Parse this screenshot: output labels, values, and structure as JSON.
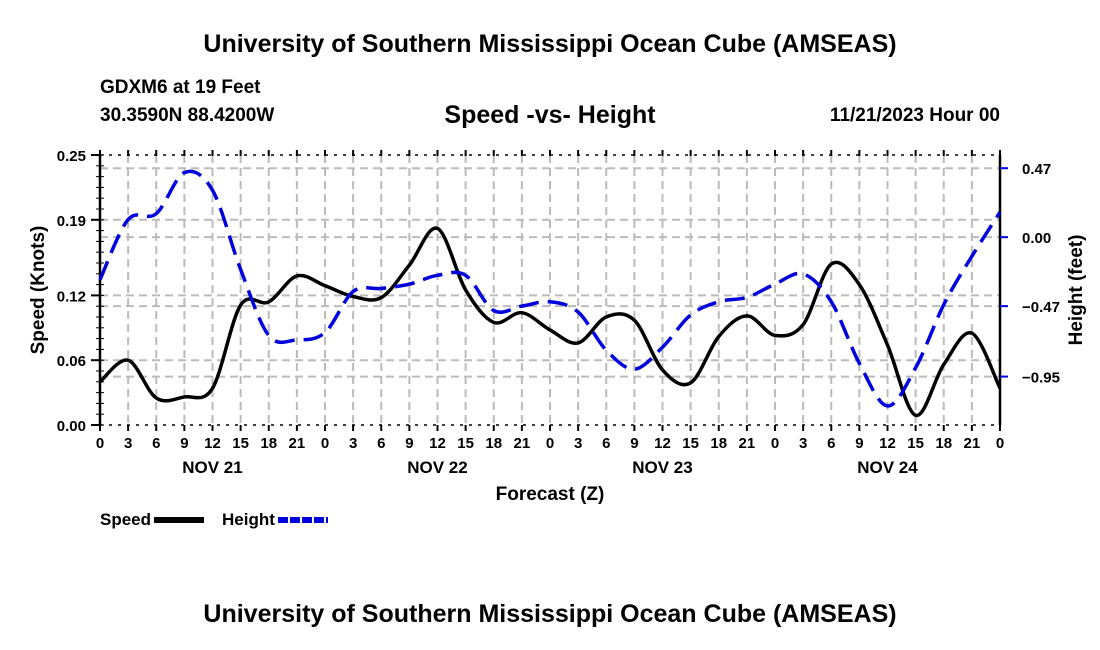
{
  "header": {
    "main_title": "University of Southern Mississippi Ocean Cube (AMSEAS)",
    "station": "GDXM6 at 19 Feet",
    "coordinates": "30.3590N  88.4200W",
    "subtitle": "Speed -vs- Height",
    "datetime": "11/21/2023 Hour 00",
    "footer_title": "University of Southern Mississippi Ocean Cube (AMSEAS)"
  },
  "legend": {
    "speed_label": "Speed",
    "height_label": "Height"
  },
  "chart_data": {
    "type": "line",
    "title": "Speed -vs- Height",
    "xlabel": "Forecast (Z)",
    "ylabel": "Speed (Knots)",
    "y2label": "Height (feet)",
    "xlim": [
      0,
      96
    ],
    "ylim": [
      0,
      0.25
    ],
    "y2lim": [
      -1.28,
      0.56
    ],
    "grid": true,
    "legend_position": "bottom-left",
    "x_tick_labels": [
      "0",
      "3",
      "6",
      "9",
      "12",
      "15",
      "18",
      "21",
      "0",
      "3",
      "6",
      "9",
      "12",
      "15",
      "18",
      "21",
      "0",
      "3",
      "6",
      "9",
      "12",
      "15",
      "18",
      "21",
      "0",
      "3",
      "6",
      "9",
      "12",
      "15",
      "18",
      "21",
      "0"
    ],
    "day_labels": [
      {
        "label": "NOV 21",
        "center_hour": 12
      },
      {
        "label": "NOV 22",
        "center_hour": 36
      },
      {
        "label": "NOV 23",
        "center_hour": 60
      },
      {
        "label": "NOV 24",
        "center_hour": 84
      }
    ],
    "y_ticks": [
      0.0,
      0.06,
      0.12,
      0.19,
      0.25
    ],
    "y_tick_labels": [
      "0.00",
      "0.06",
      "0.12",
      "0.19",
      "0.25"
    ],
    "y2_ticks": [
      -0.95,
      -0.47,
      0.0,
      0.47
    ],
    "y2_tick_labels": [
      "−0.95",
      "−0.47",
      "0.00",
      "0.47"
    ],
    "x": [
      0,
      3,
      6,
      9,
      12,
      15,
      18,
      21,
      24,
      27,
      30,
      33,
      36,
      39,
      42,
      45,
      48,
      51,
      54,
      57,
      60,
      63,
      66,
      69,
      72,
      75,
      78,
      81,
      84,
      87,
      90,
      93,
      96
    ],
    "series": [
      {
        "name": "Speed",
        "axis": "left",
        "color": "#000000",
        "style": "solid",
        "values": [
          0.04,
          0.06,
          0.025,
          0.026,
          0.034,
          0.111,
          0.114,
          0.138,
          0.129,
          0.119,
          0.118,
          0.148,
          0.182,
          0.125,
          0.095,
          0.104,
          0.088,
          0.076,
          0.1,
          0.097,
          0.051,
          0.039,
          0.082,
          0.101,
          0.083,
          0.093,
          0.149,
          0.13,
          0.074,
          0.009,
          0.056,
          0.085,
          0.034
        ]
      },
      {
        "name": "Height",
        "axis": "right",
        "color": "#0000dd",
        "style": "dashed",
        "values": [
          -0.29,
          0.12,
          0.16,
          0.44,
          0.32,
          -0.22,
          -0.67,
          -0.7,
          -0.65,
          -0.37,
          -0.35,
          -0.32,
          -0.26,
          -0.26,
          -0.5,
          -0.47,
          -0.44,
          -0.51,
          -0.77,
          -0.9,
          -0.75,
          -0.53,
          -0.44,
          -0.41,
          -0.32,
          -0.25,
          -0.44,
          -0.86,
          -1.15,
          -0.89,
          -0.46,
          -0.13,
          0.17
        ]
      }
    ]
  }
}
